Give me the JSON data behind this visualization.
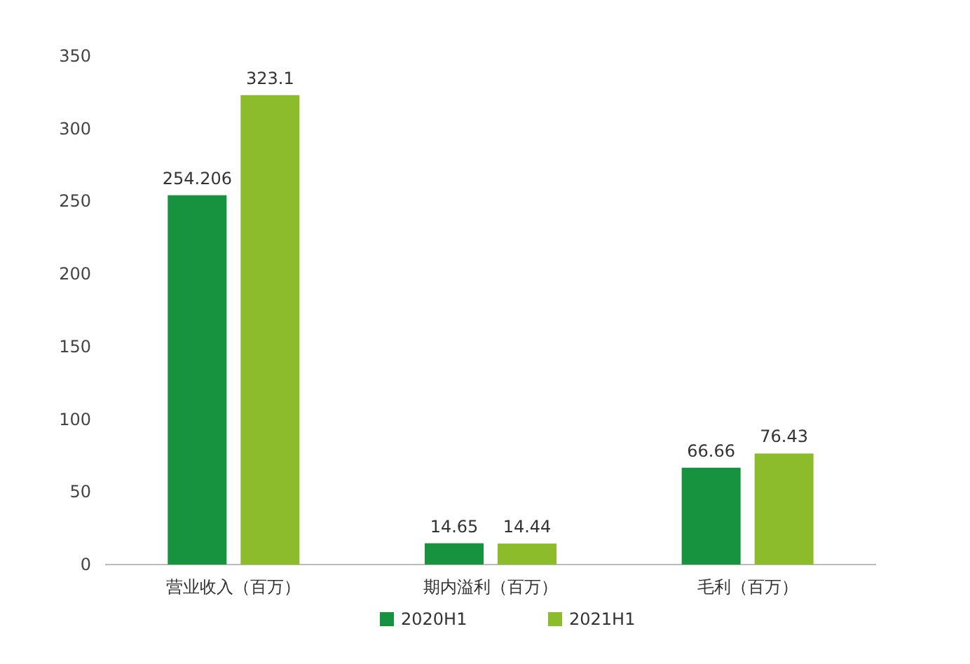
{
  "chart_data": {
    "type": "bar",
    "categories": [
      "营业收入（百万）",
      "期内溢利（百万）",
      "毛利（百万）"
    ],
    "series": [
      {
        "name": "2020H1",
        "color": "#17923f",
        "values": [
          254.206,
          14.65,
          66.66
        ]
      },
      {
        "name": "2021H1",
        "color": "#8cbc2b",
        "values": [
          323.1,
          14.44,
          76.43
        ]
      }
    ],
    "ylim": [
      0,
      350
    ],
    "yticks": [
      0,
      50,
      100,
      150,
      200,
      250,
      300,
      350
    ],
    "data_labels": true,
    "legend": "bottom",
    "grid": false
  }
}
